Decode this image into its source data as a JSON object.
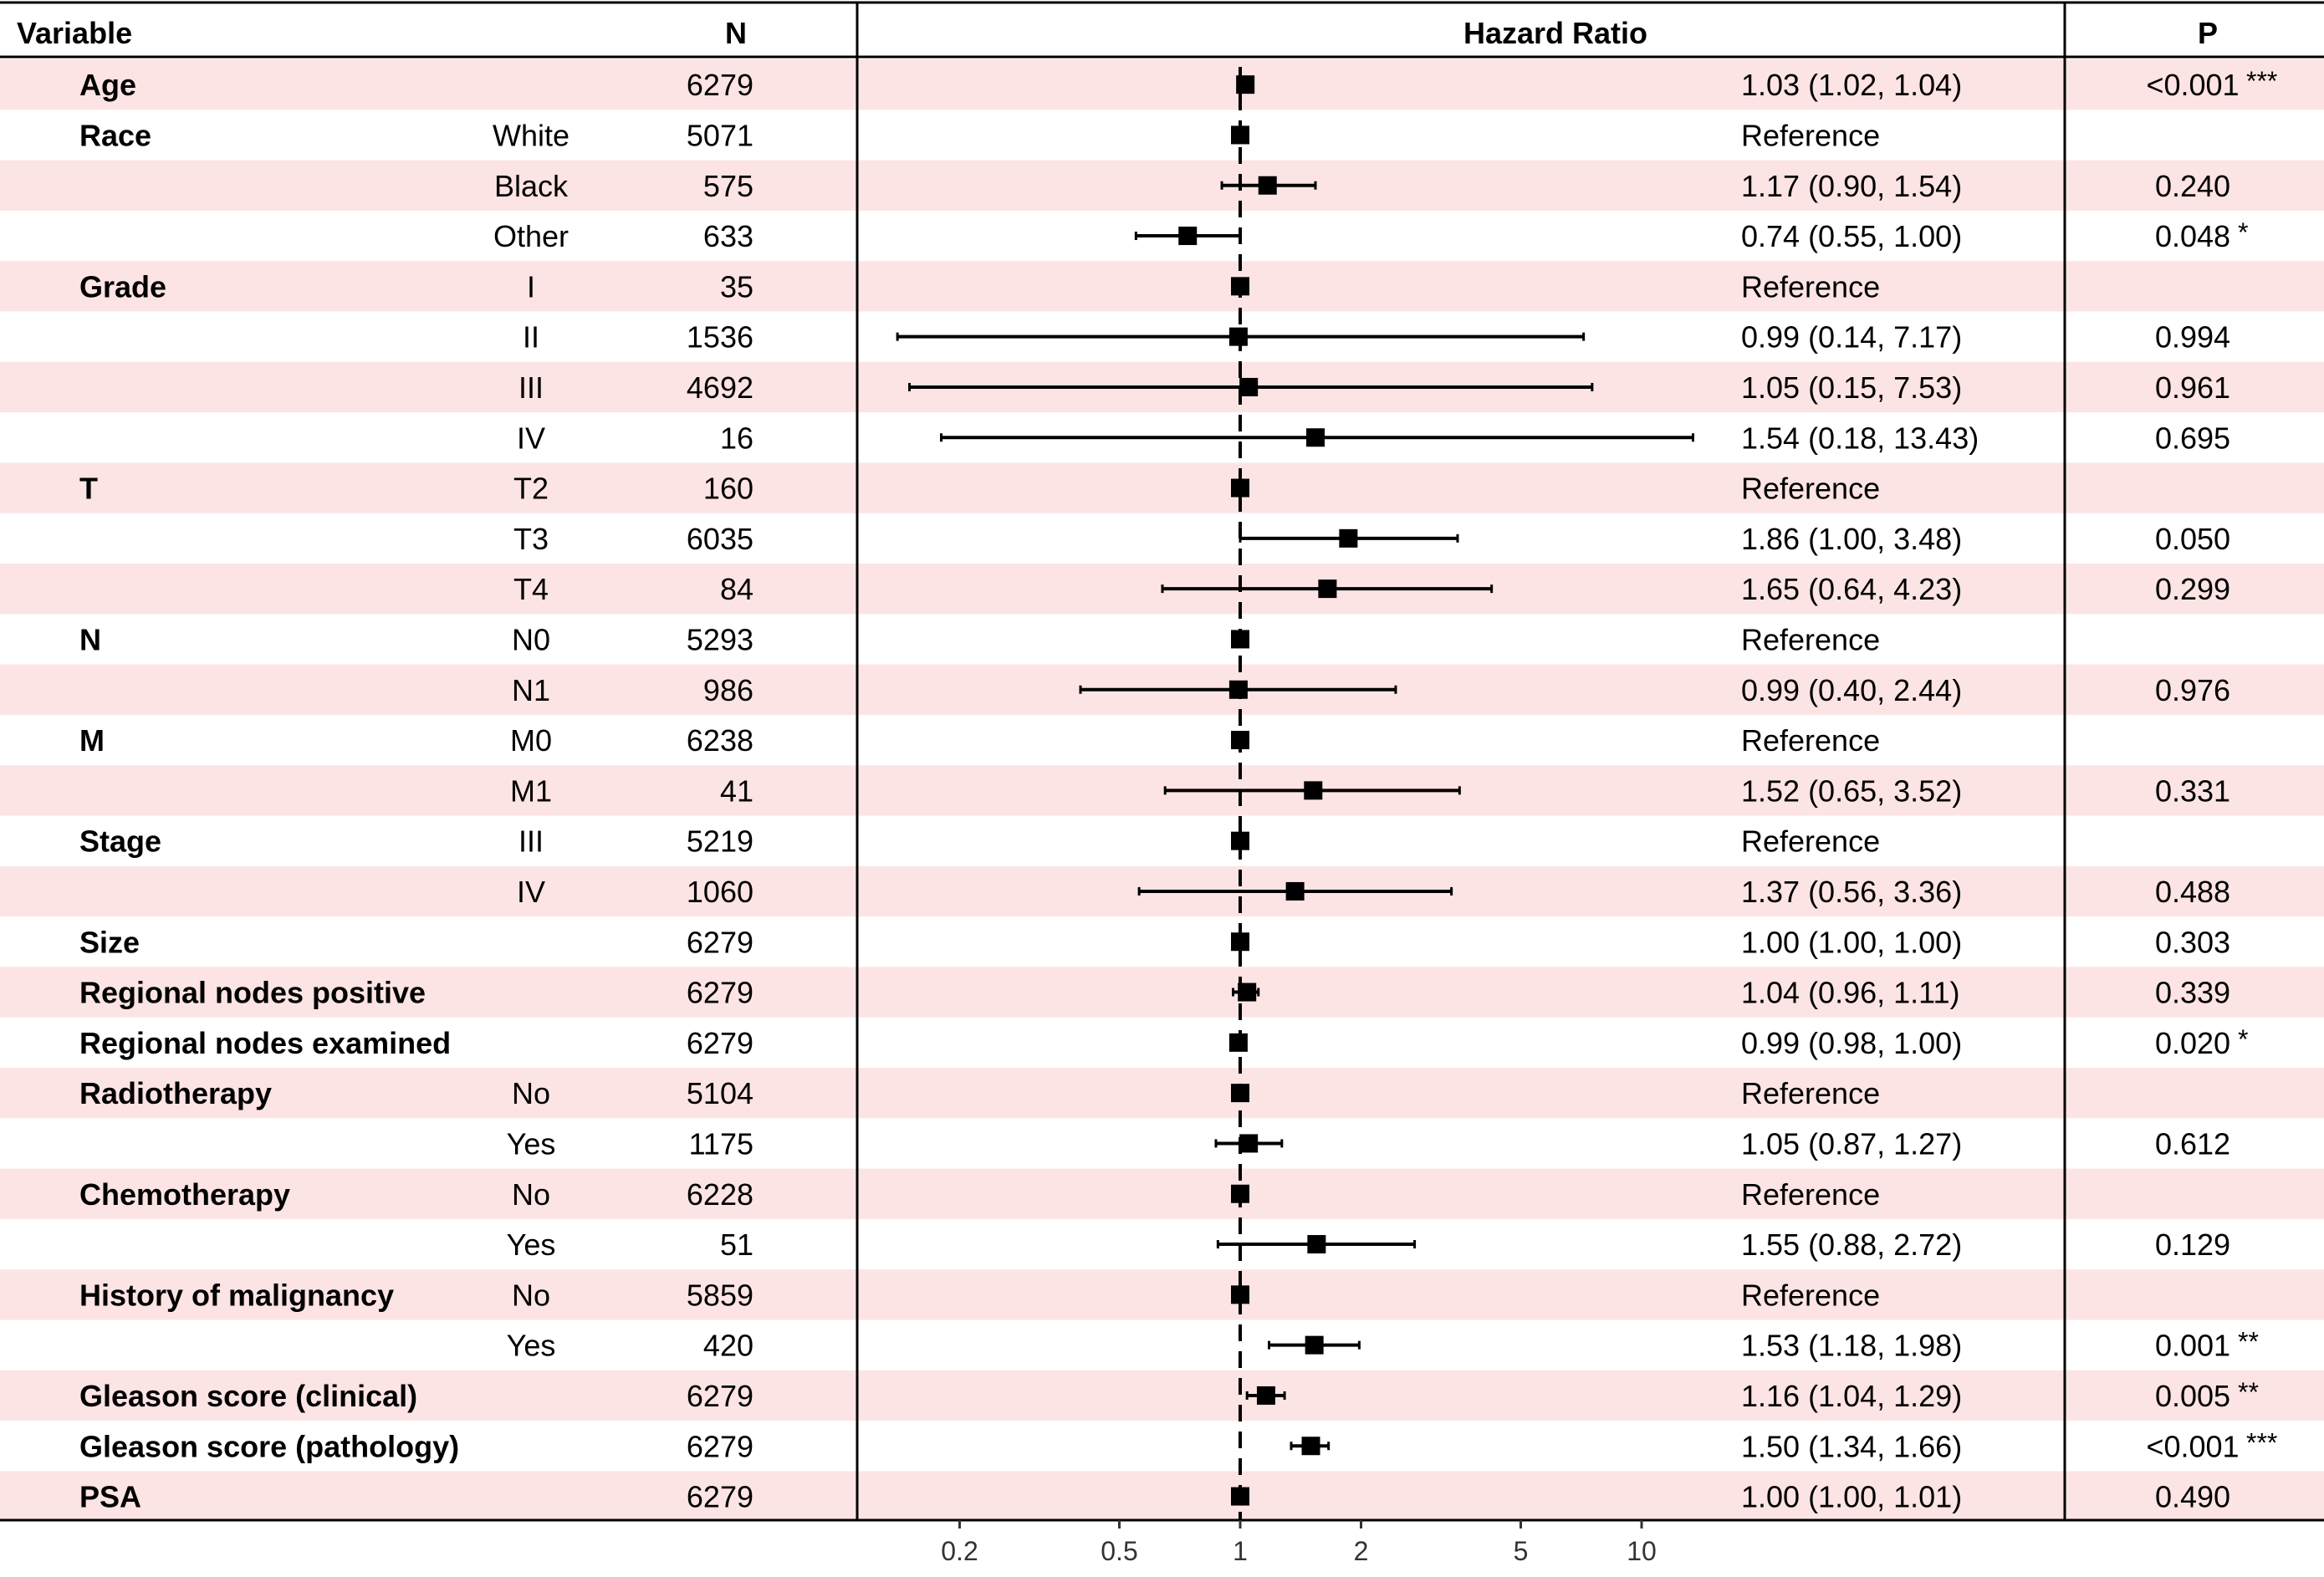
{
  "chart_data": {
    "type": "forest",
    "title": "",
    "xlabel": "",
    "x_scale": "log",
    "xlim": [
      0.15,
      16
    ],
    "reference_line": 1,
    "x_ticks": [
      0.2,
      0.5,
      1,
      2,
      5,
      10
    ],
    "tick_labels": [
      "0.2",
      "0.5",
      "1",
      "2",
      "5",
      "10"
    ],
    "headers": {
      "variable": "Variable",
      "n": "N",
      "hr": "Hazard Ratio",
      "p": "P"
    },
    "reference_label": "Reference",
    "colors": {
      "band": "#fde4e4",
      "line": "#000000"
    },
    "rows": [
      {
        "variable": "Age",
        "level": "",
        "n": "6279",
        "hr": 1.03,
        "lower": 1.02,
        "upper": 1.04,
        "hr_text": "1.03 (1.02, 1.04)",
        "p": "<0.001",
        "sig": "***"
      },
      {
        "variable": "Race",
        "level": "White",
        "n": "5071",
        "hr": 1,
        "lower": 1,
        "upper": 1,
        "hr_text": "Reference",
        "p": "",
        "sig": ""
      },
      {
        "variable": "",
        "level": "Black",
        "n": "575",
        "hr": 1.17,
        "lower": 0.9,
        "upper": 1.54,
        "hr_text": "1.17 (0.90, 1.54)",
        "p": "0.240",
        "sig": ""
      },
      {
        "variable": "",
        "level": "Other",
        "n": "633",
        "hr": 0.74,
        "lower": 0.55,
        "upper": 1.0,
        "hr_text": "0.74 (0.55, 1.00)",
        "p": "0.048",
        "sig": "*"
      },
      {
        "variable": "Grade",
        "level": "I",
        "n": "35",
        "hr": 1,
        "lower": 1,
        "upper": 1,
        "hr_text": "Reference",
        "p": "",
        "sig": ""
      },
      {
        "variable": "",
        "level": "II",
        "n": "1536",
        "hr": 0.99,
        "lower": 0.14,
        "upper": 7.17,
        "hr_text": "0.99 (0.14, 7.17)",
        "p": "0.994",
        "sig": ""
      },
      {
        "variable": "",
        "level": "III",
        "n": "4692",
        "hr": 1.05,
        "lower": 0.15,
        "upper": 7.53,
        "hr_text": "1.05 (0.15, 7.53)",
        "p": "0.961",
        "sig": ""
      },
      {
        "variable": "",
        "level": "IV",
        "n": "16",
        "hr": 1.54,
        "lower": 0.18,
        "upper": 13.43,
        "hr_text": "1.54 (0.18, 13.43)",
        "p": "0.695",
        "sig": ""
      },
      {
        "variable": "T",
        "level": "T2",
        "n": "160",
        "hr": 1,
        "lower": 1,
        "upper": 1,
        "hr_text": "Reference",
        "p": "",
        "sig": ""
      },
      {
        "variable": "",
        "level": "T3",
        "n": "6035",
        "hr": 1.86,
        "lower": 1.0,
        "upper": 3.48,
        "hr_text": "1.86 (1.00, 3.48)",
        "p": "0.050",
        "sig": ""
      },
      {
        "variable": "",
        "level": "T4",
        "n": "84",
        "hr": 1.65,
        "lower": 0.64,
        "upper": 4.23,
        "hr_text": "1.65 (0.64, 4.23)",
        "p": "0.299",
        "sig": ""
      },
      {
        "variable": "N",
        "level": "N0",
        "n": "5293",
        "hr": 1,
        "lower": 1,
        "upper": 1,
        "hr_text": "Reference",
        "p": "",
        "sig": ""
      },
      {
        "variable": "",
        "level": "N1",
        "n": "986",
        "hr": 0.99,
        "lower": 0.4,
        "upper": 2.44,
        "hr_text": "0.99 (0.40, 2.44)",
        "p": "0.976",
        "sig": ""
      },
      {
        "variable": "M",
        "level": "M0",
        "n": "6238",
        "hr": 1,
        "lower": 1,
        "upper": 1,
        "hr_text": "Reference",
        "p": "",
        "sig": ""
      },
      {
        "variable": "",
        "level": "M1",
        "n": "41",
        "hr": 1.52,
        "lower": 0.65,
        "upper": 3.52,
        "hr_text": "1.52 (0.65, 3.52)",
        "p": "0.331",
        "sig": ""
      },
      {
        "variable": "Stage",
        "level": "III",
        "n": "5219",
        "hr": 1,
        "lower": 1,
        "upper": 1,
        "hr_text": "Reference",
        "p": "",
        "sig": ""
      },
      {
        "variable": "",
        "level": "IV",
        "n": "1060",
        "hr": 1.37,
        "lower": 0.56,
        "upper": 3.36,
        "hr_text": "1.37 (0.56, 3.36)",
        "p": "0.488",
        "sig": ""
      },
      {
        "variable": "Size",
        "level": "",
        "n": "6279",
        "hr": 1.0,
        "lower": 1.0,
        "upper": 1.0,
        "hr_text": "1.00 (1.00, 1.00)",
        "p": "0.303",
        "sig": ""
      },
      {
        "variable": "Regional nodes positive",
        "level": "",
        "n": "6279",
        "hr": 1.04,
        "lower": 0.96,
        "upper": 1.11,
        "hr_text": "1.04 (0.96, 1.11)",
        "p": "0.339",
        "sig": ""
      },
      {
        "variable": "Regional nodes examined",
        "level": "",
        "n": "6279",
        "hr": 0.99,
        "lower": 0.98,
        "upper": 1.0,
        "hr_text": "0.99 (0.98, 1.00)",
        "p": "0.020",
        "sig": "*"
      },
      {
        "variable": "Radiotherapy",
        "level": "No",
        "n": "5104",
        "hr": 1,
        "lower": 1,
        "upper": 1,
        "hr_text": "Reference",
        "p": "",
        "sig": ""
      },
      {
        "variable": "",
        "level": "Yes",
        "n": "1175",
        "hr": 1.05,
        "lower": 0.87,
        "upper": 1.27,
        "hr_text": "1.05 (0.87, 1.27)",
        "p": "0.612",
        "sig": ""
      },
      {
        "variable": "Chemotherapy",
        "level": "No",
        "n": "6228",
        "hr": 1,
        "lower": 1,
        "upper": 1,
        "hr_text": "Reference",
        "p": "",
        "sig": ""
      },
      {
        "variable": "",
        "level": "Yes",
        "n": "51",
        "hr": 1.55,
        "lower": 0.88,
        "upper": 2.72,
        "hr_text": "1.55 (0.88, 2.72)",
        "p": "0.129",
        "sig": ""
      },
      {
        "variable": "History of malignancy",
        "level": "No",
        "n": "5859",
        "hr": 1,
        "lower": 1,
        "upper": 1,
        "hr_text": "Reference",
        "p": "",
        "sig": ""
      },
      {
        "variable": "",
        "level": "Yes",
        "n": "420",
        "hr": 1.53,
        "lower": 1.18,
        "upper": 1.98,
        "hr_text": "1.53 (1.18, 1.98)",
        "p": "0.001",
        "sig": "**"
      },
      {
        "variable": "Gleason score (clinical)",
        "level": "",
        "n": "6279",
        "hr": 1.16,
        "lower": 1.04,
        "upper": 1.29,
        "hr_text": "1.16 (1.04, 1.29)",
        "p": "0.005",
        "sig": "**"
      },
      {
        "variable": "Gleason score (pathology)",
        "level": "",
        "n": "6279",
        "hr": 1.5,
        "lower": 1.34,
        "upper": 1.66,
        "hr_text": "1.50 (1.34, 1.66)",
        "p": "<0.001",
        "sig": "***"
      },
      {
        "variable": "PSA",
        "level": "",
        "n": "6279",
        "hr": 1.0,
        "lower": 1.0,
        "upper": 1.01,
        "hr_text": "1.00 (1.00, 1.01)",
        "p": "0.490",
        "sig": ""
      }
    ]
  }
}
